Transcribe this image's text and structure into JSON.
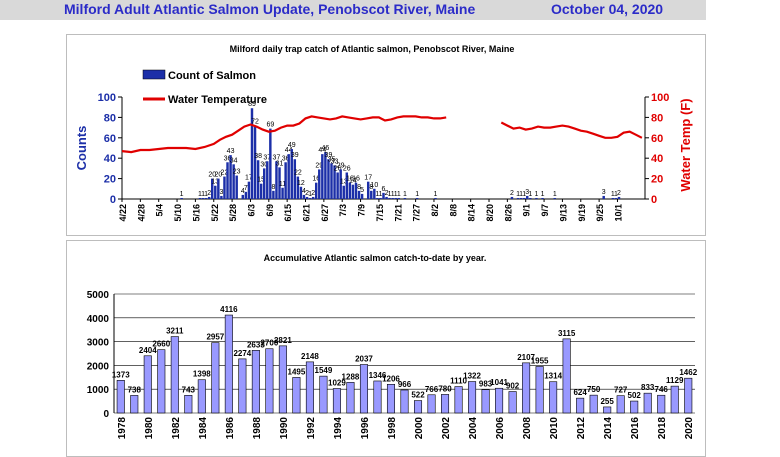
{
  "header": {
    "title": "Milford Adult Atlantic Salmon Update, Penobscot River, Maine",
    "date": "October 04, 2020"
  },
  "chart_data": [
    {
      "type": "bar",
      "title": "Milford daily trap catch of Atlantic salmon, Penobscot River, Maine",
      "ylabel": "Counts",
      "y2label": "Water Temp (F)",
      "ylim": [
        0,
        100
      ],
      "y2lim": [
        0,
        100
      ],
      "yticks": [
        0,
        20,
        40,
        60,
        80,
        100
      ],
      "legend": [
        "Count of Salmon",
        "Water Temperature"
      ],
      "xticks": [
        "4/22",
        "4/28",
        "5/4",
        "5/10",
        "5/16",
        "5/22",
        "5/28",
        "6/3",
        "6/9",
        "6/15",
        "6/21",
        "6/27",
        "7/3",
        "7/9",
        "7/15",
        "7/21",
        "7/27",
        "8/2",
        "8/8",
        "8/14",
        "8/20",
        "8/26",
        "9/1",
        "9/7",
        "9/13",
        "9/19",
        "9/25",
        "10/1"
      ],
      "counts": [
        [
          19,
          1
        ],
        [
          25,
          1
        ],
        [
          26,
          1
        ],
        [
          27,
          1
        ],
        [
          28,
          2
        ],
        [
          29,
          20
        ],
        [
          30,
          13
        ],
        [
          31,
          20
        ],
        [
          32,
          3
        ],
        [
          33,
          22
        ],
        [
          34,
          36
        ],
        [
          35,
          43
        ],
        [
          36,
          34
        ],
        [
          37,
          23
        ],
        [
          39,
          4
        ],
        [
          40,
          7
        ],
        [
          41,
          17
        ],
        [
          42,
          89
        ],
        [
          43,
          72
        ],
        [
          44,
          38
        ],
        [
          45,
          15
        ],
        [
          46,
          30
        ],
        [
          47,
          37
        ],
        [
          48,
          69
        ],
        [
          49,
          8
        ],
        [
          50,
          37
        ],
        [
          51,
          31
        ],
        [
          52,
          11
        ],
        [
          53,
          36
        ],
        [
          54,
          44
        ],
        [
          55,
          49
        ],
        [
          56,
          39
        ],
        [
          57,
          22
        ],
        [
          58,
          12
        ],
        [
          59,
          4
        ],
        [
          60,
          2
        ],
        [
          61,
          1
        ],
        [
          62,
          2
        ],
        [
          63,
          16
        ],
        [
          64,
          29
        ],
        [
          65,
          44
        ],
        [
          66,
          46
        ],
        [
          67,
          39
        ],
        [
          68,
          35
        ],
        [
          69,
          33
        ],
        [
          70,
          26
        ],
        [
          71,
          29
        ],
        [
          72,
          13
        ],
        [
          73,
          26
        ],
        [
          74,
          16
        ],
        [
          75,
          14
        ],
        [
          76,
          16
        ],
        [
          77,
          8
        ],
        [
          78,
          5
        ],
        [
          80,
          17
        ],
        [
          81,
          8
        ],
        [
          82,
          10
        ],
        [
          83,
          1
        ],
        [
          84,
          1
        ],
        [
          85,
          6
        ],
        [
          86,
          2
        ],
        [
          87,
          1
        ],
        [
          88,
          1
        ],
        [
          89,
          1
        ],
        [
          90,
          1
        ],
        [
          92,
          1
        ],
        [
          96,
          1
        ],
        [
          102,
          1
        ],
        [
          127,
          2
        ],
        [
          129,
          1
        ],
        [
          130,
          1
        ],
        [
          131,
          1
        ],
        [
          132,
          3
        ],
        [
          133,
          1
        ],
        [
          135,
          1
        ],
        [
          137,
          1
        ],
        [
          141,
          1
        ],
        [
          157,
          3
        ],
        [
          160,
          1
        ],
        [
          161,
          1
        ],
        [
          162,
          2
        ]
      ],
      "water_temp": [
        [
          [
            0,
            47
          ],
          [
            3,
            46
          ],
          [
            6,
            48
          ],
          [
            9,
            48
          ],
          [
            12,
            49
          ],
          [
            15,
            50
          ],
          [
            18,
            50
          ],
          [
            21,
            50
          ],
          [
            24,
            49
          ],
          [
            27,
            51
          ],
          [
            30,
            54
          ],
          [
            32,
            58
          ],
          [
            34,
            61
          ],
          [
            36,
            63
          ],
          [
            38,
            67
          ],
          [
            40,
            71
          ],
          [
            42,
            73
          ],
          [
            44,
            71
          ],
          [
            46,
            68
          ],
          [
            48,
            66
          ],
          [
            50,
            67
          ],
          [
            52,
            70
          ],
          [
            54,
            72
          ],
          [
            56,
            72
          ],
          [
            58,
            74
          ],
          [
            60,
            79
          ],
          [
            62,
            81
          ],
          [
            64,
            80
          ],
          [
            66,
            79
          ],
          [
            68,
            78
          ],
          [
            70,
            79
          ],
          [
            72,
            81
          ],
          [
            74,
            80
          ],
          [
            76,
            79
          ],
          [
            78,
            78
          ],
          [
            80,
            79
          ],
          [
            82,
            80
          ],
          [
            84,
            80
          ],
          [
            86,
            77
          ],
          [
            88,
            78
          ],
          [
            90,
            80
          ],
          [
            92,
            81
          ],
          [
            94,
            81
          ],
          [
            96,
            81
          ],
          [
            98,
            80
          ],
          [
            100,
            80
          ],
          [
            102,
            79
          ],
          [
            104,
            79
          ],
          [
            106,
            80
          ]
        ],
        [
          [
            124,
            75
          ],
          [
            126,
            72
          ],
          [
            128,
            69
          ],
          [
            130,
            70
          ],
          [
            132,
            68
          ],
          [
            134,
            69
          ],
          [
            136,
            71
          ],
          [
            138,
            70
          ],
          [
            140,
            70
          ],
          [
            142,
            71
          ],
          [
            144,
            72
          ],
          [
            146,
            71
          ],
          [
            148,
            69
          ],
          [
            150,
            67
          ],
          [
            152,
            66
          ],
          [
            154,
            64
          ],
          [
            156,
            62
          ],
          [
            158,
            60
          ],
          [
            160,
            60
          ],
          [
            162,
            61
          ],
          [
            164,
            65
          ],
          [
            166,
            66
          ],
          [
            168,
            63
          ],
          [
            170,
            60
          ]
        ]
      ]
    },
    {
      "type": "bar",
      "title": "Accumulative Atlantic salmon catch-to-date by year.",
      "ylim": [
        0,
        5000
      ],
      "yticks": [
        0,
        1000,
        2000,
        3000,
        4000,
        5000
      ],
      "years": [
        "1978",
        "1979",
        "1980",
        "1981",
        "1982",
        "1983",
        "1984",
        "1985",
        "1986",
        "1987",
        "1988",
        "1989",
        "1990",
        "1991",
        "1992",
        "1993",
        "1994",
        "1995",
        "1996",
        "1997",
        "1998",
        "1999",
        "2000",
        "2001",
        "2002",
        "2003",
        "2004",
        "2005",
        "2006",
        "2007",
        "2008",
        "2009",
        "2010",
        "2011",
        "2012",
        "2013",
        "2014",
        "2015",
        "2016",
        "2017",
        "2018",
        "2019",
        "2020"
      ],
      "values": [
        1373,
        738,
        2404,
        2660,
        3211,
        743,
        1398,
        2957,
        4116,
        2274,
        2633,
        2700,
        2821,
        1495,
        2148,
        1549,
        1029,
        1288,
        2037,
        1346,
        1206,
        966,
        522,
        766,
        780,
        1110,
        1322,
        983,
        1041,
        902,
        2107,
        1955,
        1314,
        3115,
        624,
        750,
        255,
        727,
        502,
        833,
        746,
        1129,
        1462
      ]
    }
  ]
}
